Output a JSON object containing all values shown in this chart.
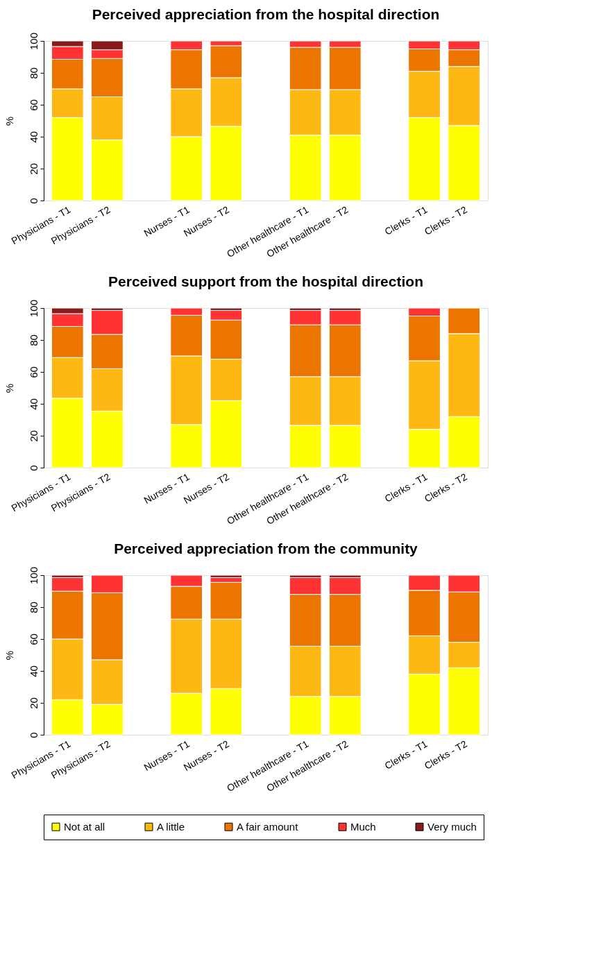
{
  "chart_data": [
    {
      "type": "bar",
      "stacked": true,
      "title": "Perceived appreciation from the hospital direction",
      "ylabel": "%",
      "ylim": [
        0,
        100
      ],
      "yticks": [
        0,
        20,
        40,
        60,
        80,
        100
      ],
      "grid": false,
      "legend": false,
      "categories": [
        "Physicians - T1",
        "Physicians - T2",
        null,
        "Nurses - T1",
        "Nurses - T2",
        null,
        "Other healthcare - T1",
        "Other healthcare - T2",
        null,
        "Clerks - T1",
        "Clerks - T2"
      ],
      "series": [
        {
          "color": "#ffff00",
          "values": [
            52,
            38,
            null,
            40,
            46.5,
            null,
            41,
            41,
            null,
            52,
            47
          ]
        },
        {
          "color": "#fdb813",
          "values": [
            18,
            27,
            null,
            30,
            30.5,
            null,
            28.5,
            28.5,
            null,
            29,
            37
          ]
        },
        {
          "color": "#ec7500",
          "values": [
            18.5,
            24,
            null,
            24.5,
            20,
            null,
            26.5,
            26.5,
            null,
            14,
            10.5
          ]
        },
        {
          "color": "#ff3333",
          "values": [
            8,
            5.5,
            null,
            5.5,
            3,
            null,
            4,
            4,
            null,
            5,
            5.5
          ]
        },
        {
          "color": "#8b1a1a",
          "values": [
            3.5,
            5.5,
            null,
            0,
            0,
            null,
            0,
            0,
            null,
            0,
            0
          ]
        }
      ]
    },
    {
      "type": "bar",
      "stacked": true,
      "title": "Perceived support from the hospital direction",
      "ylabel": "%",
      "ylim": [
        0,
        100
      ],
      "yticks": [
        0,
        20,
        40,
        60,
        80,
        100
      ],
      "grid": false,
      "legend": false,
      "categories": [
        "Physicians - T1",
        "Physicians - T2",
        null,
        "Nurses - T1",
        "Nurses - T2",
        null,
        "Other healthcare - T1",
        "Other healthcare - T2",
        null,
        "Clerks - T1",
        "Clerks - T2"
      ],
      "series": [
        {
          "color": "#ffff00",
          "values": [
            43.5,
            35.5,
            null,
            27,
            42,
            null,
            26.5,
            26.5,
            null,
            24,
            32
          ]
        },
        {
          "color": "#fdb813",
          "values": [
            25.5,
            26.5,
            null,
            43,
            26,
            null,
            30.5,
            30.5,
            null,
            43,
            52
          ]
        },
        {
          "color": "#ec7500",
          "values": [
            19.5,
            21.5,
            null,
            25.5,
            24.5,
            null,
            32.5,
            32.5,
            null,
            28,
            16
          ]
        },
        {
          "color": "#ff3333",
          "values": [
            8,
            15,
            null,
            4.5,
            6,
            null,
            9,
            9,
            null,
            5,
            0
          ]
        },
        {
          "color": "#8b1a1a",
          "values": [
            3.5,
            1.5,
            null,
            0,
            1.5,
            null,
            1.5,
            1.5,
            null,
            0,
            0
          ]
        }
      ]
    },
    {
      "type": "bar",
      "stacked": true,
      "title": "Perceived appreciation from the community",
      "ylabel": "%",
      "ylim": [
        0,
        100
      ],
      "yticks": [
        0,
        20,
        40,
        60,
        80,
        100
      ],
      "grid": false,
      "legend": "bottom",
      "categories": [
        "Physicians - T1",
        "Physicians - T2",
        null,
        "Nurses - T1",
        "Nurses - T2",
        null,
        "Other healthcare - T1",
        "Other healthcare - T2",
        null,
        "Clerks - T1",
        "Clerks - T2"
      ],
      "series": [
        {
          "name": "Not at all",
          "color": "#ffff00",
          "values": [
            22,
            19,
            null,
            26,
            29,
            null,
            24,
            24,
            null,
            38,
            42
          ]
        },
        {
          "name": "A little",
          "color": "#fdb813",
          "values": [
            38,
            28,
            null,
            46.5,
            43.5,
            null,
            31.5,
            31.5,
            null,
            24,
            16
          ]
        },
        {
          "name": "A fair amount",
          "color": "#ec7500",
          "values": [
            30,
            42,
            null,
            20.5,
            23,
            null,
            32.5,
            32.5,
            null,
            28.5,
            31.5
          ]
        },
        {
          "name": "Much",
          "color": "#ff3333",
          "values": [
            8.5,
            11,
            null,
            7,
            3,
            null,
            10.5,
            10.5,
            null,
            9.5,
            10.5
          ]
        },
        {
          "name": "Very much",
          "color": "#8b1a1a",
          "values": [
            1.5,
            0,
            null,
            0,
            1.5,
            null,
            1.5,
            1.5,
            null,
            0,
            0
          ]
        }
      ]
    }
  ]
}
